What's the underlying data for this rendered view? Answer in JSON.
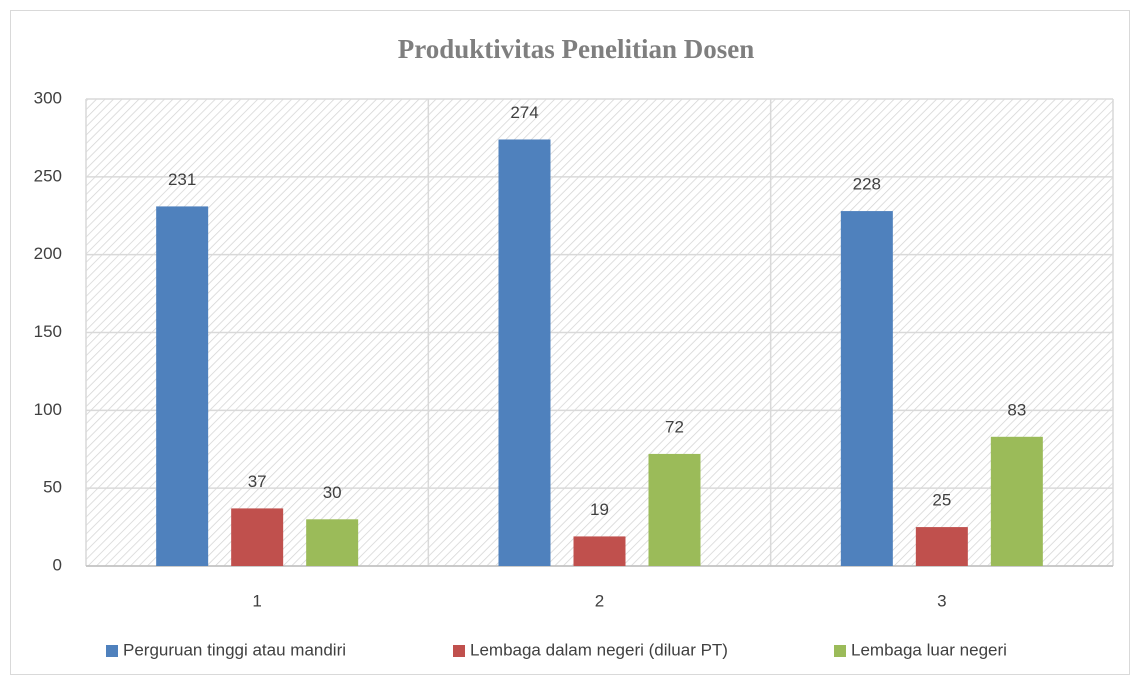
{
  "chart_data": {
    "type": "bar",
    "title": "Produktivitas Penelitian Dosen",
    "categories": [
      "1",
      "2",
      "3"
    ],
    "series": [
      {
        "name": "Perguruan tinggi atau mandiri",
        "color": "#4f81bd",
        "values": [
          231,
          274,
          228
        ]
      },
      {
        "name": "Lembaga dalam negeri (diluar PT)",
        "color": "#c0504d",
        "values": [
          37,
          19,
          25
        ]
      },
      {
        "name": "Lembaga luar negeri",
        "color": "#9bbb59",
        "values": [
          30,
          72,
          83
        ]
      }
    ],
    "ylim": [
      0,
      300
    ],
    "yticks": [
      0,
      50,
      100,
      150,
      200,
      250,
      300
    ],
    "grid": true,
    "legend": "bottom"
  }
}
